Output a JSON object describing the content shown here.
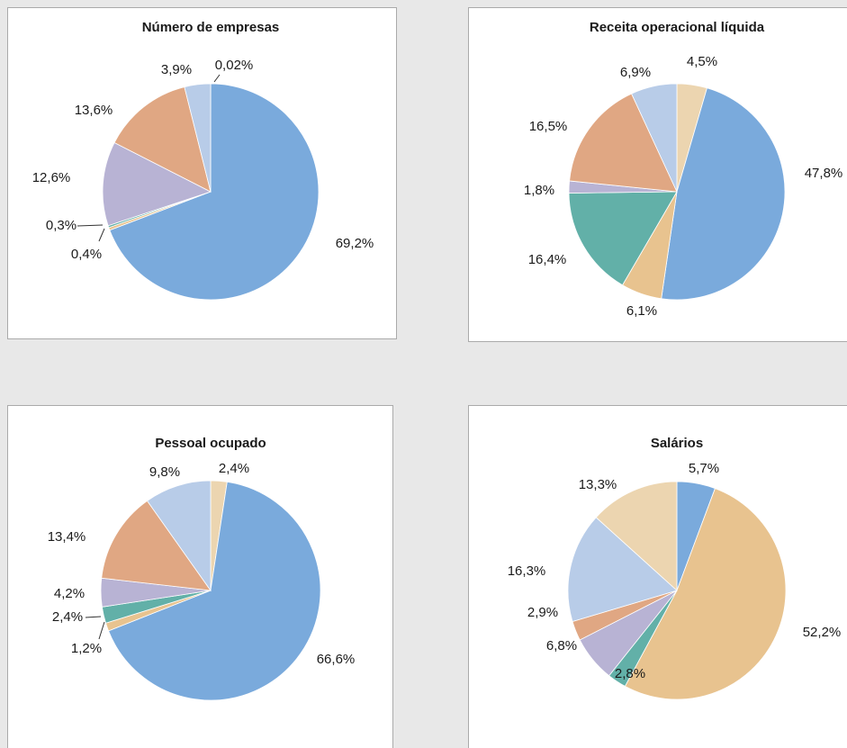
{
  "chart_data": [
    {
      "type": "pie",
      "title": "Número de empresas",
      "values": [
        0.02,
        69.2,
        0.4,
        0.3,
        12.6,
        13.6,
        3.9
      ],
      "value_labels": [
        "0,02%",
        "69,2%",
        "0,4%",
        "0,3%",
        "12,6%",
        "13,6%",
        "3,9%"
      ],
      "colors": [
        "#ecd5b0",
        "#7aaadc",
        "#e8c38f",
        "#62b0a8",
        "#b8b3d4",
        "#e0a783",
        "#b8cce8"
      ]
    },
    {
      "type": "pie",
      "title": "Receita operacional líquida",
      "values": [
        4.5,
        47.8,
        6.1,
        16.4,
        1.8,
        16.5,
        6.9
      ],
      "value_labels": [
        "4,5%",
        "47,8%",
        "6,1%",
        "16,4%",
        "1,8%",
        "16,5%",
        "6,9%"
      ],
      "colors": [
        "#ecd5b0",
        "#7aaadc",
        "#e8c38f",
        "#62b0a8",
        "#b8b3d4",
        "#e0a783",
        "#b8cce8"
      ]
    },
    {
      "type": "pie",
      "title": "Pessoal ocupado",
      "values": [
        2.4,
        66.6,
        1.2,
        2.4,
        4.2,
        13.4,
        9.8
      ],
      "value_labels": [
        "2,4%",
        "66,6%",
        "1,2%",
        "2,4%",
        "4,2%",
        "13,4%",
        "9,8%"
      ],
      "colors": [
        "#ecd5b0",
        "#7aaadc",
        "#e8c38f",
        "#62b0a8",
        "#b8b3d4",
        "#e0a783",
        "#b8cce8"
      ]
    },
    {
      "type": "pie",
      "title": "Salários",
      "values": [
        5.7,
        52.2,
        2.8,
        6.8,
        2.9,
        16.3,
        13.3
      ],
      "value_labels": [
        "5,7%",
        "52,2%",
        "2,8%",
        "6,8%",
        "2,9%",
        "16,3%",
        "13,3%"
      ],
      "colors": [
        "#7aaadc",
        "#e8c38f",
        "#62b0a8",
        "#b8b3d4",
        "#e0a783",
        "#b8cce8",
        "#ecd5b0"
      ]
    }
  ]
}
